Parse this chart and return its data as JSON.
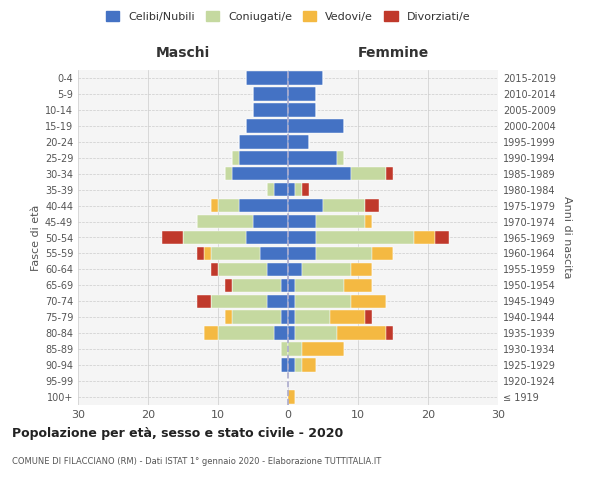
{
  "age_groups": [
    "100+",
    "95-99",
    "90-94",
    "85-89",
    "80-84",
    "75-79",
    "70-74",
    "65-69",
    "60-64",
    "55-59",
    "50-54",
    "45-49",
    "40-44",
    "35-39",
    "30-34",
    "25-29",
    "20-24",
    "15-19",
    "10-14",
    "5-9",
    "0-4"
  ],
  "birth_years": [
    "≤ 1919",
    "1920-1924",
    "1925-1929",
    "1930-1934",
    "1935-1939",
    "1940-1944",
    "1945-1949",
    "1950-1954",
    "1955-1959",
    "1960-1964",
    "1965-1969",
    "1970-1974",
    "1975-1979",
    "1980-1984",
    "1985-1989",
    "1990-1994",
    "1995-1999",
    "2000-2004",
    "2005-2009",
    "2010-2014",
    "2015-2019"
  ],
  "colors": {
    "celibi": "#4472c4",
    "coniugati": "#c5d9a0",
    "vedovi": "#f4b942",
    "divorziati": "#c0392b"
  },
  "maschi": {
    "celibi": [
      0,
      0,
      1,
      0,
      2,
      1,
      3,
      1,
      3,
      4,
      6,
      5,
      7,
      2,
      8,
      7,
      7,
      6,
      5,
      5,
      6
    ],
    "coniugati": [
      0,
      0,
      0,
      1,
      8,
      7,
      8,
      7,
      7,
      7,
      9,
      8,
      3,
      1,
      1,
      1,
      0,
      0,
      0,
      0,
      0
    ],
    "vedovi": [
      0,
      0,
      0,
      0,
      2,
      1,
      0,
      0,
      0,
      1,
      0,
      0,
      1,
      0,
      0,
      0,
      0,
      0,
      0,
      0,
      0
    ],
    "divorziati": [
      0,
      0,
      0,
      0,
      0,
      0,
      2,
      1,
      1,
      1,
      3,
      0,
      0,
      0,
      0,
      0,
      0,
      0,
      0,
      0,
      0
    ]
  },
  "femmine": {
    "celibi": [
      0,
      0,
      1,
      0,
      1,
      1,
      1,
      1,
      2,
      4,
      4,
      4,
      5,
      1,
      9,
      7,
      3,
      8,
      4,
      4,
      5
    ],
    "coniugati": [
      0,
      0,
      1,
      2,
      6,
      5,
      8,
      7,
      7,
      8,
      14,
      7,
      6,
      1,
      5,
      1,
      0,
      0,
      0,
      0,
      0
    ],
    "vedovi": [
      1,
      0,
      2,
      6,
      7,
      5,
      5,
      4,
      3,
      3,
      3,
      1,
      0,
      0,
      0,
      0,
      0,
      0,
      0,
      0,
      0
    ],
    "divorziati": [
      0,
      0,
      0,
      0,
      1,
      1,
      0,
      0,
      0,
      0,
      2,
      0,
      2,
      1,
      1,
      0,
      0,
      0,
      0,
      0,
      0
    ]
  },
  "xlim": 30,
  "title": "Popolazione per età, sesso e stato civile - 2020",
  "subtitle": "COMUNE DI FILACCIANO (RM) - Dati ISTAT 1° gennaio 2020 - Elaborazione TUTTITALIA.IT",
  "ylabel_left": "Fasce di età",
  "ylabel_right": "Anni di nascita",
  "xlabel_maschi": "Maschi",
  "xlabel_femmine": "Femmine",
  "legend_labels": [
    "Celibi/Nubili",
    "Coniugati/e",
    "Vedovi/e",
    "Divorziati/e"
  ],
  "background_color": "#f5f5f5",
  "bar_height": 0.85
}
